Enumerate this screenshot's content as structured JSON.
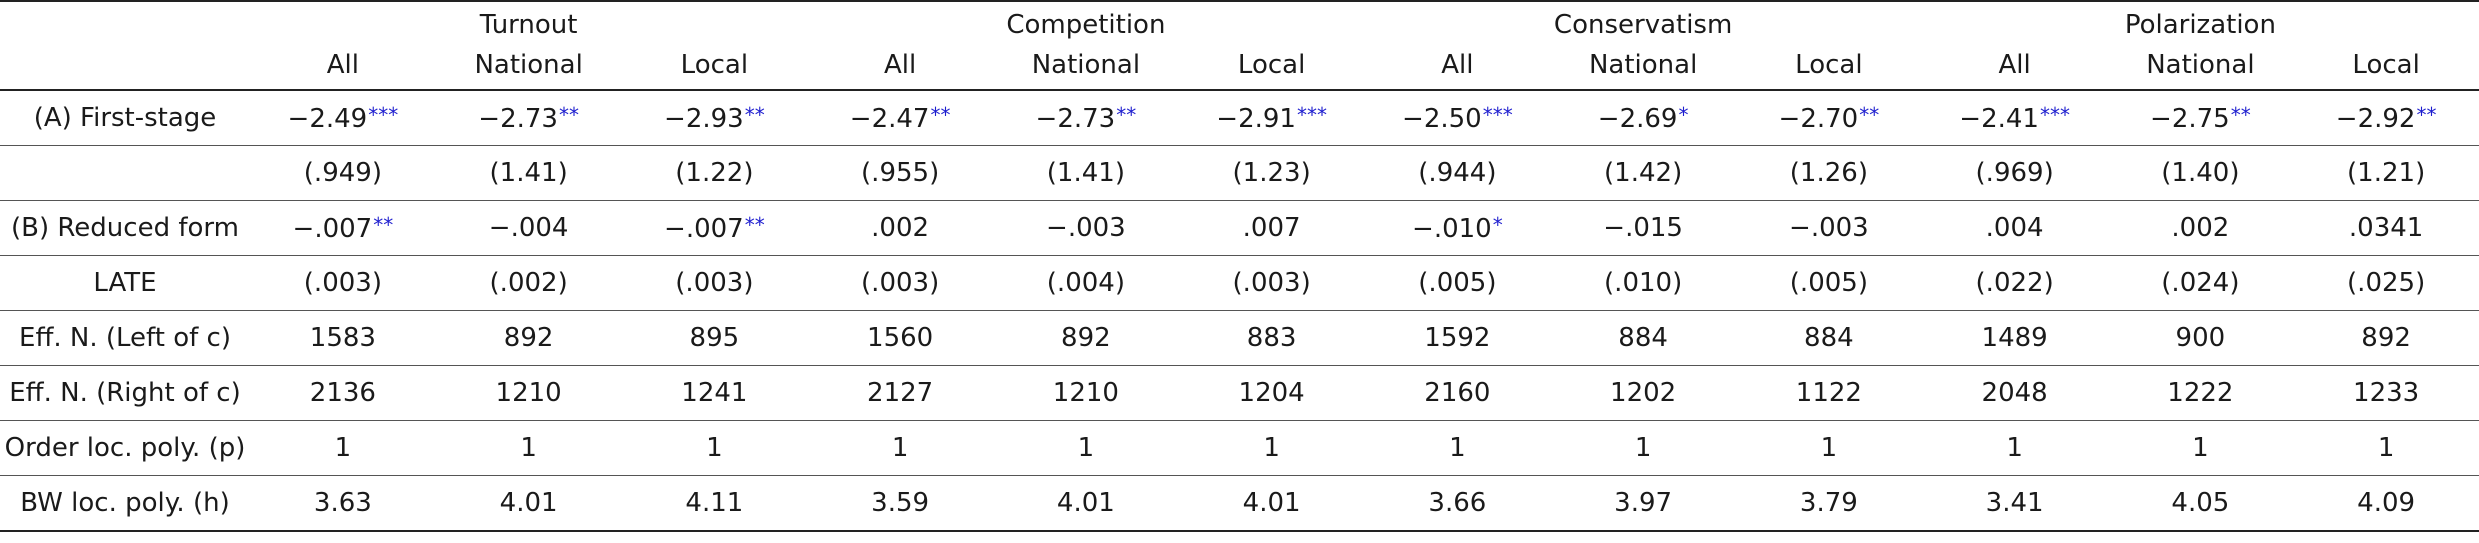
{
  "groups": [
    "Turnout",
    "Competition",
    "Conservatism",
    "Polarization"
  ],
  "subheaders": [
    "All",
    "National",
    "Local",
    "All",
    "National",
    "Local",
    "All",
    "National",
    "Local",
    "All",
    "National",
    "Local"
  ],
  "rows": [
    {
      "label": "(A) First-stage",
      "cells": [
        {
          "v": "−2.49",
          "s": "***"
        },
        {
          "v": "−2.73",
          "s": "**"
        },
        {
          "v": "−2.93",
          "s": "**"
        },
        {
          "v": "−2.47",
          "s": "**"
        },
        {
          "v": "−2.73",
          "s": "**"
        },
        {
          "v": "−2.91",
          "s": "***"
        },
        {
          "v": "−2.50",
          "s": "***"
        },
        {
          "v": "−2.69",
          "s": "*"
        },
        {
          "v": "−2.70",
          "s": "**"
        },
        {
          "v": "−2.41",
          "s": "***"
        },
        {
          "v": "−2.75",
          "s": "**"
        },
        {
          "v": "−2.92",
          "s": "**"
        }
      ]
    },
    {
      "label": "",
      "cells": [
        {
          "v": "(.949)",
          "s": ""
        },
        {
          "v": "(1.41)",
          "s": ""
        },
        {
          "v": "(1.22)",
          "s": ""
        },
        {
          "v": "(.955)",
          "s": ""
        },
        {
          "v": "(1.41)",
          "s": ""
        },
        {
          "v": "(1.23)",
          "s": ""
        },
        {
          "v": "(.944)",
          "s": ""
        },
        {
          "v": "(1.42)",
          "s": ""
        },
        {
          "v": "(1.26)",
          "s": ""
        },
        {
          "v": "(.969)",
          "s": ""
        },
        {
          "v": "(1.40)",
          "s": ""
        },
        {
          "v": "(1.21)",
          "s": ""
        }
      ]
    },
    {
      "label": "(B) Reduced form",
      "cells": [
        {
          "v": "−.007",
          "s": "**"
        },
        {
          "v": "−.004",
          "s": ""
        },
        {
          "v": "−.007",
          "s": "**"
        },
        {
          "v": ".002",
          "s": ""
        },
        {
          "v": "−.003",
          "s": ""
        },
        {
          "v": ".007",
          "s": ""
        },
        {
          "v": "−.010",
          "s": "*"
        },
        {
          "v": "−.015",
          "s": ""
        },
        {
          "v": "−.003",
          "s": ""
        },
        {
          "v": ".004",
          "s": ""
        },
        {
          "v": ".002",
          "s": ""
        },
        {
          "v": ".0341",
          "s": ""
        }
      ]
    },
    {
      "label": "LATE",
      "cells": [
        {
          "v": "(.003)",
          "s": ""
        },
        {
          "v": "(.002)",
          "s": ""
        },
        {
          "v": "(.003)",
          "s": ""
        },
        {
          "v": "(.003)",
          "s": ""
        },
        {
          "v": "(.004)",
          "s": ""
        },
        {
          "v": "(.003)",
          "s": ""
        },
        {
          "v": "(.005)",
          "s": ""
        },
        {
          "v": "(.010)",
          "s": ""
        },
        {
          "v": "(.005)",
          "s": ""
        },
        {
          "v": "(.022)",
          "s": ""
        },
        {
          "v": "(.024)",
          "s": ""
        },
        {
          "v": "(.025)",
          "s": ""
        }
      ]
    },
    {
      "label": "Eff. N. (Left of c)",
      "cells": [
        {
          "v": "1583",
          "s": ""
        },
        {
          "v": "892",
          "s": ""
        },
        {
          "v": "895",
          "s": ""
        },
        {
          "v": "1560",
          "s": ""
        },
        {
          "v": "892",
          "s": ""
        },
        {
          "v": "883",
          "s": ""
        },
        {
          "v": "1592",
          "s": ""
        },
        {
          "v": "884",
          "s": ""
        },
        {
          "v": "884",
          "s": ""
        },
        {
          "v": "1489",
          "s": ""
        },
        {
          "v": "900",
          "s": ""
        },
        {
          "v": "892",
          "s": ""
        }
      ]
    },
    {
      "label": "Eff. N. (Right of c)",
      "cells": [
        {
          "v": "2136",
          "s": ""
        },
        {
          "v": "1210",
          "s": ""
        },
        {
          "v": "1241",
          "s": ""
        },
        {
          "v": "2127",
          "s": ""
        },
        {
          "v": "1210",
          "s": ""
        },
        {
          "v": "1204",
          "s": ""
        },
        {
          "v": "2160",
          "s": ""
        },
        {
          "v": "1202",
          "s": ""
        },
        {
          "v": "1122",
          "s": ""
        },
        {
          "v": "2048",
          "s": ""
        },
        {
          "v": "1222",
          "s": ""
        },
        {
          "v": "1233",
          "s": ""
        }
      ]
    },
    {
      "label": "Order loc. poly. (p)",
      "cells": [
        {
          "v": "1",
          "s": ""
        },
        {
          "v": "1",
          "s": ""
        },
        {
          "v": "1",
          "s": ""
        },
        {
          "v": "1",
          "s": ""
        },
        {
          "v": "1",
          "s": ""
        },
        {
          "v": "1",
          "s": ""
        },
        {
          "v": "1",
          "s": ""
        },
        {
          "v": "1",
          "s": ""
        },
        {
          "v": "1",
          "s": ""
        },
        {
          "v": "1",
          "s": ""
        },
        {
          "v": "1",
          "s": ""
        },
        {
          "v": "1",
          "s": ""
        }
      ]
    },
    {
      "label": "BW loc. poly. (h)",
      "cells": [
        {
          "v": "3.63",
          "s": ""
        },
        {
          "v": "4.01",
          "s": ""
        },
        {
          "v": "4.11",
          "s": ""
        },
        {
          "v": "3.59",
          "s": ""
        },
        {
          "v": "4.01",
          "s": ""
        },
        {
          "v": "4.01",
          "s": ""
        },
        {
          "v": "3.66",
          "s": ""
        },
        {
          "v": "3.97",
          "s": ""
        },
        {
          "v": "3.79",
          "s": ""
        },
        {
          "v": "3.41",
          "s": ""
        },
        {
          "v": "4.05",
          "s": ""
        },
        {
          "v": "4.09",
          "s": ""
        }
      ]
    }
  ],
  "colors": {
    "stars": "#1f1fcf",
    "text": "#1a1a1a",
    "rules": "#222222"
  }
}
